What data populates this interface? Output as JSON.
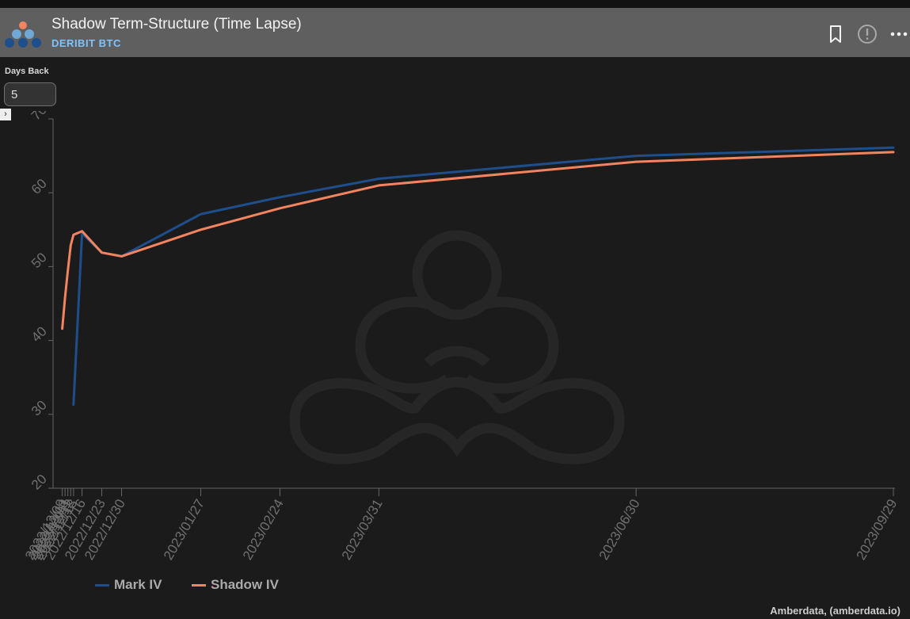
{
  "header": {
    "title": "Shadow Term-Structure (Time Lapse)",
    "subtitle": "DERIBIT BTC",
    "icons": [
      "bookmark-icon",
      "info-icon",
      "more-icon"
    ]
  },
  "controls": {
    "days_back_label": "Days Back",
    "days_back_value": "5"
  },
  "credit": "Amberdata, (amberdata.io)",
  "colors": {
    "mark": "#1f4e8c",
    "shadow": "#f4845f",
    "background": "#1b1b1b",
    "axis": "#666666"
  },
  "chart_data": {
    "type": "line",
    "title": "",
    "xlabel": "",
    "ylabel": "",
    "ylim": [
      20,
      70
    ],
    "yticks": [
      20,
      30,
      40,
      50,
      60,
      70
    ],
    "grid": false,
    "legend_position": "bottom-left",
    "x": [
      "2022/12/09",
      "2022/12/10",
      "2022/12/11",
      "2022/12/12",
      "2022/12/13",
      "2022/12/16",
      "2022/12/23",
      "2022/12/30",
      "2023/01/27",
      "2023/02/24",
      "2023/03/31",
      "2023/06/30",
      "2023/09/29"
    ],
    "x_tick_labels": [
      "2022/12/09",
      "2022/12/10",
      "2022/12/11",
      "2022/12/12",
      "2022/12/13",
      "2022/12/16",
      "2022/12/23",
      "2022/12/30",
      "2023/01/27",
      "2023/02/24",
      "2023/03/31",
      "2023/06/30",
      "2023/09/29"
    ],
    "series": [
      {
        "name": "Mark IV",
        "values": [
          null,
          null,
          null,
          null,
          31.3,
          54.5,
          51.9,
          51.4,
          57.1,
          59.4,
          61.9,
          65.0,
          66.1
        ]
      },
      {
        "name": "Shadow IV",
        "values": [
          41.6,
          45.8,
          49.5,
          52.9,
          54.3,
          54.8,
          51.9,
          51.4,
          55.0,
          57.9,
          61.0,
          64.2,
          65.5
        ]
      }
    ]
  }
}
